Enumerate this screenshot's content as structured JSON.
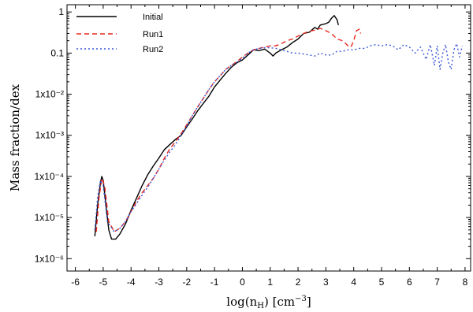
{
  "chart_data": {
    "type": "line",
    "title": "",
    "xlabel": "log(n",
    "xlabel_sub": "H",
    "xlabel_unit": ") [cm",
    "xlabel_exp": "−3",
    "xlabel_tail": "]",
    "ylabel": "Mass fraction/dex",
    "x_scale": "linear",
    "y_scale": "log",
    "xlim": [
      -6.3,
      8.2
    ],
    "ylim": [
      5e-07,
      1.5
    ],
    "grid": false,
    "legend_position": "top-left",
    "x_ticks": [
      -6,
      -5,
      -4,
      -3,
      -2,
      -1,
      0,
      1,
      2,
      3,
      4,
      5,
      6,
      7,
      8
    ],
    "x_tick_labels": [
      "-6",
      "-5",
      "-4",
      "-3",
      "-2",
      "-1",
      "0",
      "1",
      "2",
      "3",
      "4",
      "5",
      "6",
      "7",
      "8"
    ],
    "y_ticks": [
      1e-06,
      1e-05,
      0.0001,
      0.001,
      0.01,
      0.1,
      1
    ],
    "y_tick_labels": [
      "1x10⁻⁶",
      "1x10⁻⁵",
      "1x10⁻⁴",
      "1x10⁻³",
      "1x10⁻²",
      "0.1",
      "1"
    ],
    "series": [
      {
        "name": "Initial",
        "color": "#000000",
        "dash": "",
        "points": [
          [
            -5.3,
            3.5e-06
          ],
          [
            -5.2,
            2e-05
          ],
          [
            -5.1,
            7e-05
          ],
          [
            -5.05,
            0.0001
          ],
          [
            -5.0,
            8e-05
          ],
          [
            -4.9,
            2e-05
          ],
          [
            -4.8,
            5e-06
          ],
          [
            -4.7,
            3e-06
          ],
          [
            -4.55,
            3e-06
          ],
          [
            -4.4,
            4e-06
          ],
          [
            -4.2,
            7e-06
          ],
          [
            -4.0,
            1.5e-05
          ],
          [
            -3.8,
            3e-05
          ],
          [
            -3.6,
            6e-05
          ],
          [
            -3.4,
            0.00011
          ],
          [
            -3.2,
            0.00018
          ],
          [
            -3.0,
            0.00028
          ],
          [
            -2.8,
            0.00045
          ],
          [
            -2.6,
            0.0006
          ],
          [
            -2.4,
            0.0008
          ],
          [
            -2.2,
            0.001
          ],
          [
            -2.0,
            0.0016
          ],
          [
            -1.8,
            0.0025
          ],
          [
            -1.6,
            0.004
          ],
          [
            -1.4,
            0.006
          ],
          [
            -1.2,
            0.009
          ],
          [
            -1.0,
            0.015
          ],
          [
            -0.8,
            0.022
          ],
          [
            -0.6,
            0.032
          ],
          [
            -0.4,
            0.045
          ],
          [
            -0.2,
            0.058
          ],
          [
            0.0,
            0.068
          ],
          [
            0.2,
            0.09
          ],
          [
            0.4,
            0.12
          ],
          [
            0.6,
            0.115
          ],
          [
            0.8,
            0.125
          ],
          [
            1.0,
            0.1
          ],
          [
            1.1,
            0.085
          ],
          [
            1.2,
            0.1
          ],
          [
            1.4,
            0.12
          ],
          [
            1.6,
            0.14
          ],
          [
            1.8,
            0.18
          ],
          [
            2.0,
            0.22
          ],
          [
            2.2,
            0.3
          ],
          [
            2.4,
            0.32
          ],
          [
            2.6,
            0.42
          ],
          [
            2.7,
            0.38
          ],
          [
            2.8,
            0.48
          ],
          [
            3.0,
            0.52
          ],
          [
            3.1,
            0.56
          ],
          [
            3.2,
            0.7
          ],
          [
            3.3,
            0.82
          ],
          [
            3.4,
            0.65
          ],
          [
            3.45,
            0.48
          ]
        ]
      },
      {
        "name": "Run1",
        "color": "#e8261e",
        "dash": "6,4",
        "points": [
          [
            -5.25,
            4.5e-06
          ],
          [
            -5.15,
            3e-05
          ],
          [
            -5.05,
            9e-05
          ],
          [
            -4.95,
            6e-05
          ],
          [
            -4.8,
            8e-06
          ],
          [
            -4.6,
            4.5e-06
          ],
          [
            -4.4,
            5.5e-06
          ],
          [
            -4.2,
            8e-06
          ],
          [
            -4.0,
            1.4e-05
          ],
          [
            -3.8,
            2.5e-05
          ],
          [
            -3.6,
            4e-05
          ],
          [
            -3.4,
            6e-05
          ],
          [
            -3.2,
            9e-05
          ],
          [
            -3.0,
            0.00015
          ],
          [
            -2.8,
            0.00028
          ],
          [
            -2.6,
            0.00048
          ],
          [
            -2.4,
            0.0007
          ],
          [
            -2.2,
            0.0011
          ],
          [
            -2.0,
            0.0018
          ],
          [
            -1.8,
            0.003
          ],
          [
            -1.6,
            0.005
          ],
          [
            -1.4,
            0.008
          ],
          [
            -1.2,
            0.013
          ],
          [
            -1.0,
            0.02
          ],
          [
            -0.8,
            0.028
          ],
          [
            -0.6,
            0.04
          ],
          [
            -0.4,
            0.05
          ],
          [
            -0.2,
            0.062
          ],
          [
            0.0,
            0.08
          ],
          [
            0.2,
            0.1
          ],
          [
            0.4,
            0.12
          ],
          [
            0.6,
            0.13
          ],
          [
            0.8,
            0.14
          ],
          [
            1.0,
            0.15
          ],
          [
            1.2,
            0.15
          ],
          [
            1.4,
            0.17
          ],
          [
            1.6,
            0.2
          ],
          [
            1.8,
            0.22
          ],
          [
            2.0,
            0.26
          ],
          [
            2.2,
            0.3
          ],
          [
            2.4,
            0.34
          ],
          [
            2.6,
            0.36
          ],
          [
            2.8,
            0.4
          ],
          [
            3.0,
            0.35
          ],
          [
            3.2,
            0.3
          ],
          [
            3.4,
            0.22
          ],
          [
            3.6,
            0.2
          ],
          [
            3.8,
            0.15
          ],
          [
            3.9,
            0.14
          ],
          [
            4.0,
            0.2
          ],
          [
            4.1,
            0.35
          ],
          [
            4.2,
            0.38
          ],
          [
            4.25,
            0.3
          ]
        ]
      },
      {
        "name": "Run2",
        "color": "#3a57d8",
        "dash": "2,3",
        "points": [
          [
            -5.3,
            5e-06
          ],
          [
            -5.2,
            3e-05
          ],
          [
            -5.1,
            8e-05
          ],
          [
            -5.0,
            6e-05
          ],
          [
            -4.85,
            8e-06
          ],
          [
            -4.6,
            4.5e-06
          ],
          [
            -4.4,
            5.5e-06
          ],
          [
            -4.2,
            8e-06
          ],
          [
            -4.0,
            1.4e-05
          ],
          [
            -3.8,
            2.2e-05
          ],
          [
            -3.6,
            3.5e-05
          ],
          [
            -3.4,
            5.5e-05
          ],
          [
            -3.2,
            9e-05
          ],
          [
            -3.0,
            0.00015
          ],
          [
            -2.8,
            0.00025
          ],
          [
            -2.6,
            0.0004
          ],
          [
            -2.4,
            0.0006
          ],
          [
            -2.2,
            0.001
          ],
          [
            -2.0,
            0.0017
          ],
          [
            -1.8,
            0.003
          ],
          [
            -1.6,
            0.005
          ],
          [
            -1.4,
            0.008
          ],
          [
            -1.2,
            0.013
          ],
          [
            -1.0,
            0.02
          ],
          [
            -0.8,
            0.028
          ],
          [
            -0.6,
            0.04
          ],
          [
            -0.4,
            0.05
          ],
          [
            -0.2,
            0.06
          ],
          [
            0.0,
            0.075
          ],
          [
            0.2,
            0.1
          ],
          [
            0.4,
            0.12
          ],
          [
            0.6,
            0.13
          ],
          [
            0.8,
            0.135
          ],
          [
            1.0,
            0.135
          ],
          [
            1.2,
            0.13
          ],
          [
            1.4,
            0.12
          ],
          [
            1.6,
            0.11
          ],
          [
            1.8,
            0.1
          ],
          [
            2.0,
            0.1
          ],
          [
            2.2,
            0.095
          ],
          [
            2.4,
            0.09
          ],
          [
            2.6,
            0.085
          ],
          [
            2.8,
            0.1
          ],
          [
            3.0,
            0.09
          ],
          [
            3.2,
            0.09
          ],
          [
            3.4,
            0.11
          ],
          [
            3.6,
            0.11
          ],
          [
            3.8,
            0.12
          ],
          [
            4.0,
            0.12
          ],
          [
            4.2,
            0.13
          ],
          [
            4.4,
            0.13
          ],
          [
            4.6,
            0.15
          ],
          [
            4.8,
            0.16
          ],
          [
            5.0,
            0.15
          ],
          [
            5.2,
            0.16
          ],
          [
            5.4,
            0.15
          ],
          [
            5.6,
            0.12
          ],
          [
            5.8,
            0.16
          ],
          [
            6.0,
            0.14
          ],
          [
            6.2,
            0.1
          ],
          [
            6.4,
            0.14
          ],
          [
            6.6,
            0.07
          ],
          [
            6.75,
            0.16
          ],
          [
            6.9,
            0.05
          ],
          [
            7.0,
            0.15
          ],
          [
            7.1,
            0.04
          ],
          [
            7.2,
            0.1
          ],
          [
            7.3,
            0.16
          ],
          [
            7.4,
            0.06
          ],
          [
            7.5,
            0.04
          ],
          [
            7.6,
            0.12
          ],
          [
            7.7,
            0.17
          ],
          [
            7.8,
            0.08
          ],
          [
            7.9,
            0.15
          ]
        ]
      }
    ]
  }
}
